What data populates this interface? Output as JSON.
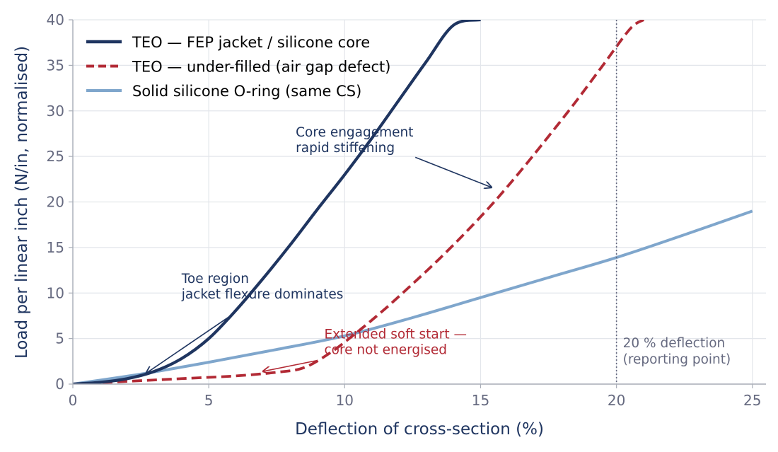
{
  "chart_data": {
    "type": "line",
    "title": "",
    "xlabel": "Deflection of cross-section (%)",
    "ylabel": "Load per linear inch (N/in, normalised)",
    "xlim": [
      0,
      25.5
    ],
    "ylim": [
      0,
      40
    ],
    "xticks": [
      0,
      5,
      10,
      15,
      20,
      25
    ],
    "yticks": [
      0,
      5,
      10,
      15,
      20,
      25,
      30,
      35,
      40
    ],
    "grid": true,
    "legend_position": "top-left",
    "series": [
      {
        "name": "TEO — FEP jacket / silicone core",
        "color": "#1f3560",
        "style": "solid",
        "x": [
          0,
          1,
          2,
          3,
          4,
          5,
          6,
          7,
          8,
          9,
          10,
          11,
          12,
          13,
          14,
          15
        ],
        "y": [
          0,
          0.2,
          0.6,
          1.4,
          2.8,
          5.0,
          8.1,
          11.6,
          15.3,
          19.2,
          23.0,
          27.0,
          31.2,
          35.4,
          39.4,
          40.0
        ]
      },
      {
        "name": "TEO — under-filled (air gap defect)",
        "color": "#b22a35",
        "style": "dashed",
        "x": [
          0,
          2,
          4,
          6,
          7.5,
          8.5,
          9.5,
          10.5,
          11.5,
          12.5,
          13.5,
          14.5,
          15.5,
          16.5,
          17.5,
          18.5,
          19.5,
          20.5,
          21
        ],
        "y": [
          0,
          0.3,
          0.6,
          0.9,
          1.3,
          1.8,
          3.5,
          5.8,
          8.3,
          11.0,
          13.8,
          16.8,
          20.0,
          23.5,
          27.2,
          31.0,
          35.0,
          39.0,
          40.0
        ]
      },
      {
        "name": "Solid silicone O-ring (same CS)",
        "color": "#7fa6cc",
        "style": "solid",
        "x": [
          0,
          2.5,
          5,
          7.5,
          10,
          12.5,
          15,
          17.5,
          20,
          22.5,
          25
        ],
        "y": [
          0,
          1.1,
          2.4,
          3.8,
          5.3,
          7.3,
          9.5,
          11.7,
          13.9,
          16.4,
          19.0
        ]
      }
    ],
    "reference_line": {
      "x": 20,
      "label_line1": "20 % deflection",
      "label_line2": "(reporting point)",
      "color": "#666a80"
    },
    "annotations": [
      {
        "line1": "Core engagement",
        "line2": "rapid stiffening",
        "color": "#1f3560",
        "text_at": [
          8.2,
          27.2
        ],
        "arrow_from": [
          12.6,
          24.9
        ],
        "arrow_to": [
          15.4,
          21.6
        ]
      },
      {
        "line1": "Toe region",
        "line2": "jacket flexure dominates",
        "color": "#1f3560",
        "text_at": [
          4.0,
          11.1
        ],
        "arrow_from": [
          5.8,
          7.5
        ],
        "arrow_to": [
          2.7,
          1.2
        ]
      },
      {
        "line1": "Extended soft start —",
        "line2": "core not energised",
        "color": "#b22a35",
        "text_at": [
          9.25,
          5.0
        ],
        "arrow_from": [
          9.0,
          2.6
        ],
        "arrow_to": [
          7.0,
          1.4
        ]
      }
    ]
  }
}
